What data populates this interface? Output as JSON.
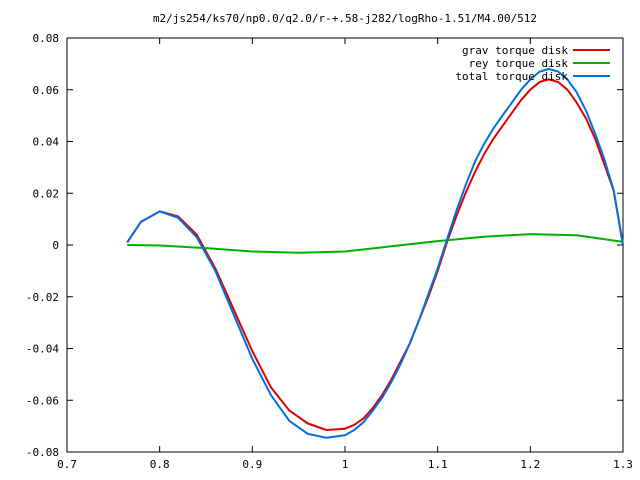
{
  "chart_data": {
    "type": "line",
    "title": "m2/js254/ks70/np0.0/q2.0/r-+.58-j282/logRho-1.51/M4.00/512",
    "xlabel": "",
    "ylabel": "",
    "xlim": [
      0.7,
      1.3
    ],
    "ylim": [
      -0.08,
      0.08
    ],
    "x_ticks": [
      0.7,
      0.8,
      0.9,
      1.0,
      1.1,
      1.2,
      1.3
    ],
    "x_tick_labels": [
      "0.7",
      "0.8",
      "0.9",
      "1",
      "1.1",
      "1.2",
      "1.3"
    ],
    "y_ticks": [
      -0.08,
      -0.06,
      -0.04,
      -0.02,
      0,
      0.02,
      0.04,
      0.06,
      0.08
    ],
    "y_tick_labels": [
      "-0.08",
      "-0.06",
      "-0.04",
      "-0.02",
      "0",
      "0.02",
      "0.04",
      "0.06",
      "0.08"
    ],
    "grid": false,
    "legend_position": "top-right",
    "series": [
      {
        "name": "grav torque disk",
        "color": "#e00000",
        "x": [
          0.765,
          0.78,
          0.8,
          0.82,
          0.84,
          0.86,
          0.88,
          0.9,
          0.92,
          0.94,
          0.96,
          0.98,
          1.0,
          1.01,
          1.02,
          1.03,
          1.04,
          1.05,
          1.06,
          1.07,
          1.08,
          1.09,
          1.1,
          1.11,
          1.12,
          1.13,
          1.14,
          1.15,
          1.16,
          1.17,
          1.18,
          1.19,
          1.2,
          1.21,
          1.22,
          1.23,
          1.24,
          1.25,
          1.26,
          1.27,
          1.28,
          1.29,
          1.3
        ],
        "y": [
          0.001,
          0.009,
          0.013,
          0.011,
          0.004,
          -0.009,
          -0.025,
          -0.041,
          -0.055,
          -0.064,
          -0.069,
          -0.0715,
          -0.071,
          -0.0695,
          -0.067,
          -0.063,
          -0.058,
          -0.052,
          -0.045,
          -0.038,
          -0.029,
          -0.02,
          -0.01,
          0.001,
          0.011,
          0.02,
          0.028,
          0.035,
          0.041,
          0.046,
          0.051,
          0.056,
          0.06,
          0.063,
          0.064,
          0.063,
          0.06,
          0.055,
          0.049,
          0.041,
          0.031,
          0.021,
          0.0
        ]
      },
      {
        "name": "rey torque disk",
        "color": "#00b000",
        "x": [
          0.765,
          0.8,
          0.85,
          0.9,
          0.95,
          1.0,
          1.05,
          1.1,
          1.15,
          1.2,
          1.25,
          1.3
        ],
        "y": [
          0.0,
          -0.0002,
          -0.0012,
          -0.0025,
          -0.003,
          -0.0025,
          -0.0005,
          0.0015,
          0.0032,
          0.0042,
          0.0038,
          0.0012
        ]
      },
      {
        "name": "total torque disk",
        "color": "#0070e0",
        "x": [
          0.765,
          0.78,
          0.8,
          0.82,
          0.84,
          0.86,
          0.88,
          0.9,
          0.92,
          0.94,
          0.96,
          0.98,
          1.0,
          1.01,
          1.02,
          1.03,
          1.04,
          1.05,
          1.06,
          1.07,
          1.08,
          1.09,
          1.1,
          1.11,
          1.12,
          1.13,
          1.14,
          1.15,
          1.16,
          1.17,
          1.18,
          1.19,
          1.2,
          1.21,
          1.22,
          1.23,
          1.24,
          1.25,
          1.26,
          1.27,
          1.28,
          1.29,
          1.3
        ],
        "y": [
          0.001,
          0.009,
          0.013,
          0.0105,
          0.003,
          -0.01,
          -0.027,
          -0.044,
          -0.058,
          -0.068,
          -0.073,
          -0.0745,
          -0.0735,
          -0.0715,
          -0.0685,
          -0.064,
          -0.059,
          -0.053,
          -0.046,
          -0.038,
          -0.029,
          -0.019,
          -0.009,
          0.002,
          0.013,
          0.023,
          0.032,
          0.039,
          0.045,
          0.05,
          0.055,
          0.06,
          0.064,
          0.067,
          0.068,
          0.067,
          0.064,
          0.059,
          0.052,
          0.043,
          0.033,
          0.021,
          0.0
        ]
      }
    ]
  }
}
